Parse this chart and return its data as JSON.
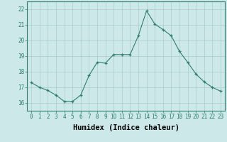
{
  "x": [
    0,
    1,
    2,
    3,
    4,
    5,
    6,
    7,
    8,
    9,
    10,
    11,
    12,
    13,
    14,
    15,
    16,
    17,
    18,
    19,
    20,
    21,
    22,
    23
  ],
  "y": [
    17.3,
    17.0,
    16.8,
    16.5,
    16.1,
    16.1,
    16.5,
    17.75,
    18.6,
    18.55,
    19.1,
    19.1,
    19.1,
    20.3,
    21.9,
    21.05,
    20.7,
    20.3,
    19.3,
    18.6,
    17.85,
    17.35,
    17.0,
    16.75
  ],
  "line_color": "#2e7d6e",
  "marker": "+",
  "bg_color": "#cce8e8",
  "grid_color": "#aacccc",
  "xlabel": "Humidex (Indice chaleur)",
  "xlim": [
    -0.5,
    23.5
  ],
  "ylim": [
    15.5,
    22.5
  ],
  "yticks": [
    16,
    17,
    18,
    19,
    20,
    21,
    22
  ],
  "xticks": [
    0,
    1,
    2,
    3,
    4,
    5,
    6,
    7,
    8,
    9,
    10,
    11,
    12,
    13,
    14,
    15,
    16,
    17,
    18,
    19,
    20,
    21,
    22,
    23
  ],
  "tick_fontsize": 5.5,
  "xlabel_fontsize": 7.5
}
